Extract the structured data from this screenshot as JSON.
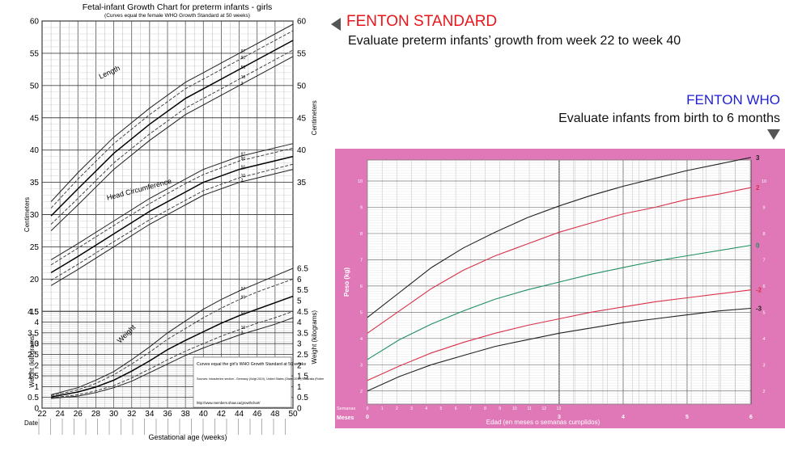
{
  "annotations": {
    "standard_title": "FENTON STANDARD",
    "standard_subtitle": "Evaluate preterm infants’ growth from week 22 to week 40",
    "who_title": "FENTON WHO",
    "who_subtitle": "Evaluate infants from birth to 6 months"
  },
  "colors": {
    "standard_title": "#e8161b",
    "who_title": "#1f1fd1",
    "who_background": "#e077b7",
    "zscore_red": "#d9304a",
    "zscore_green": "#1f8f5f",
    "zscore_black": "#222222"
  },
  "chart_data": [
    {
      "type": "line",
      "title": "Fetal-infant Growth Chart for preterm infants - girls",
      "subtitle": "(Curves equal the female WHO Growth Standard at 50 weeks)",
      "xlabel": "Gestational age (weeks)",
      "ylabel_left_upper": "Centimeters",
      "ylabel_left_lower": "Weight (kilograms)",
      "ylabel_right_upper": "Centimeters",
      "ylabel_right_lower": "Weight (kilograms)",
      "date_label": "Date",
      "x_ticks": [
        22,
        24,
        26,
        28,
        30,
        32,
        34,
        36,
        38,
        40,
        42,
        44,
        46,
        48,
        50
      ],
      "xlim": [
        22,
        50
      ],
      "y_left_ticks": [
        0,
        0.5,
        1,
        1.5,
        2,
        2.5,
        3,
        3.5,
        4,
        4.5,
        5,
        10,
        15,
        20,
        25,
        30,
        35,
        40,
        45,
        50,
        55,
        60
      ],
      "y_right_ticks": [
        0,
        0.5,
        1,
        1.5,
        2,
        2.5,
        3,
        3.5,
        4,
        4.5,
        5,
        5.5,
        6,
        6.5,
        35,
        40,
        45,
        50,
        55,
        60
      ],
      "curve_labels": {
        "length": "Length",
        "head": "Head Circumference",
        "weight": "Weight"
      },
      "percentile_labels": [
        "97",
        "90",
        "50",
        "10",
        "3"
      ],
      "groups": {
        "length": {
          "x": [
            23,
            26,
            30,
            34,
            38,
            40,
            44,
            50
          ],
          "series": [
            {
              "name": "97",
              "values": [
                32,
                36.5,
                42,
                46.5,
                50.5,
                52,
                55,
                59.5
              ]
            },
            {
              "name": "90",
              "values": [
                31,
                35.5,
                41,
                45.5,
                49.5,
                51,
                54,
                58.5
              ]
            },
            {
              "name": "50",
              "values": [
                29.8,
                34,
                39.5,
                44,
                48,
                49.5,
                52.5,
                57
              ]
            },
            {
              "name": "10",
              "values": [
                28.5,
                32.5,
                38,
                42.5,
                46.5,
                48,
                51,
                55.5
              ]
            },
            {
              "name": "3",
              "values": [
                27.5,
                31.5,
                37,
                41.5,
                45.5,
                47,
                50,
                54.5
              ]
            }
          ]
        },
        "head": {
          "x": [
            23,
            26,
            30,
            34,
            38,
            40,
            44,
            50
          ],
          "series": [
            {
              "name": "97",
              "values": [
                23,
                25.5,
                29,
                32.5,
                35.5,
                37,
                39,
                41
              ]
            },
            {
              "name": "90",
              "values": [
                22.2,
                24.8,
                28.3,
                31.7,
                34.8,
                36.2,
                38.3,
                40.3
              ]
            },
            {
              "name": "50",
              "values": [
                21,
                23.5,
                27,
                30.5,
                33.5,
                35,
                37,
                39
              ]
            },
            {
              "name": "10",
              "values": [
                19.8,
                22.3,
                25.8,
                29.2,
                32.2,
                33.7,
                35.7,
                37.8
              ]
            },
            {
              "name": "3",
              "values": [
                19,
                21.5,
                25,
                28.5,
                31.5,
                33,
                35,
                37
              ]
            }
          ]
        },
        "weight": {
          "x": [
            23,
            26,
            28,
            30,
            32,
            34,
            36,
            38,
            40,
            42,
            44,
            46,
            48,
            50
          ],
          "series": [
            {
              "name": "97",
              "values": [
                0.62,
                0.95,
                1.3,
                1.7,
                2.25,
                2.85,
                3.5,
                4.05,
                4.6,
                5.05,
                5.45,
                5.8,
                6.15,
                6.5
              ]
            },
            {
              "name": "90",
              "values": [
                0.58,
                0.85,
                1.15,
                1.55,
                2.05,
                2.6,
                3.2,
                3.7,
                4.2,
                4.65,
                5.05,
                5.4,
                5.7,
                6.0
              ]
            },
            {
              "name": "50",
              "values": [
                0.52,
                0.75,
                0.98,
                1.3,
                1.72,
                2.2,
                2.72,
                3.15,
                3.55,
                3.95,
                4.3,
                4.6,
                4.9,
                5.2
              ]
            },
            {
              "name": "10",
              "values": [
                0.48,
                0.62,
                0.8,
                1.05,
                1.4,
                1.82,
                2.25,
                2.65,
                3.0,
                3.35,
                3.65,
                3.95,
                4.2,
                4.5
              ]
            },
            {
              "name": "3",
              "values": [
                0.45,
                0.56,
                0.72,
                0.95,
                1.25,
                1.65,
                2.05,
                2.45,
                2.8,
                3.1,
                3.4,
                3.65,
                3.9,
                4.2
              ]
            }
          ]
        }
      },
      "legend_text": "Curves equal the girl's WHO Growth Standard at 50 weeks",
      "sources_text": "Sources: Intrauterine section - Germany (Voigt 2010), United States (Olsen 2010), Australia (Roberts 1999), Canada (Kramer 2001), Scotland (Bonellie 2008), and Italy (Bertino 2010). Post-term section - the World Health Organization Growth Standard, 2006",
      "url_text": "http://www.members.shaw.ca/growthchart/"
    },
    {
      "type": "line",
      "ylabel": "Peso (kg)",
      "xlabel": "Edad (en meses o semanas cumplidos)",
      "row_labels": [
        "Semanas",
        "Meses"
      ],
      "weeks_ticks": [
        "0",
        "1",
        "2",
        "3",
        "4",
        "5",
        "6",
        "7",
        "8",
        "9",
        "10",
        "11",
        "12",
        "13"
      ],
      "months_ticks": [
        "0",
        "3",
        "4",
        "5",
        "6"
      ],
      "y_ticks": [
        2,
        3,
        4,
        5,
        6,
        7,
        8,
        9,
        10
      ],
      "ylim": [
        1.5,
        10.8
      ],
      "xlim": [
        0,
        6
      ],
      "x": [
        0,
        0.5,
        1,
        1.5,
        2,
        2.5,
        3,
        3.5,
        4,
        4.5,
        5,
        5.5,
        6
      ],
      "series": [
        {
          "name": "3",
          "values": [
            4.8,
            5.75,
            6.7,
            7.45,
            8.05,
            8.6,
            9.05,
            9.45,
            9.8,
            10.1,
            10.4,
            10.65,
            10.9
          ]
        },
        {
          "name": "2",
          "values": [
            4.2,
            5.05,
            5.9,
            6.6,
            7.15,
            7.6,
            8.05,
            8.4,
            8.75,
            9.0,
            9.3,
            9.5,
            9.75
          ]
        },
        {
          "name": "0",
          "values": [
            3.2,
            3.95,
            4.55,
            5.05,
            5.5,
            5.85,
            6.15,
            6.45,
            6.7,
            6.95,
            7.15,
            7.35,
            7.55
          ]
        },
        {
          "name": "-2",
          "values": [
            2.4,
            2.95,
            3.45,
            3.85,
            4.2,
            4.5,
            4.75,
            5.0,
            5.2,
            5.4,
            5.55,
            5.7,
            5.85
          ]
        },
        {
          "name": "-3",
          "values": [
            2.0,
            2.55,
            3.0,
            3.35,
            3.7,
            3.95,
            4.2,
            4.4,
            4.6,
            4.75,
            4.9,
            5.05,
            5.15
          ]
        }
      ]
    }
  ]
}
